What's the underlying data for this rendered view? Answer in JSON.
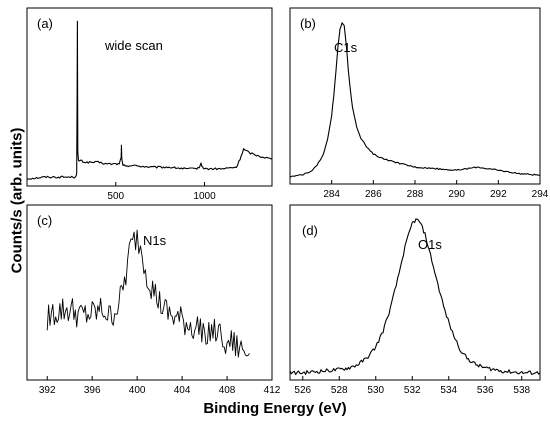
{
  "figure": {
    "ylabel": "Counts/s (arb. units)",
    "xlabel": "Binding Energy (eV)"
  },
  "chart_data": [
    {
      "type": "line",
      "panel": "(a)",
      "annotation": "wide scan",
      "xticks": [
        "500",
        "1000"
      ],
      "xlim": [
        0,
        1380
      ],
      "ylim": [
        0,
        100
      ],
      "series": [
        {
          "x": [
            0,
            100,
            200,
            260,
            275,
            280,
            284,
            286,
            290,
            300,
            330,
            400,
            450,
            500,
            520,
            530,
            532,
            534,
            540,
            600,
            700,
            800,
            900,
            950,
            970,
            980,
            990,
            1000,
            1100,
            1180,
            1200,
            1220,
            1250,
            1300,
            1380
          ],
          "y": [
            2,
            3,
            3,
            3,
            3,
            6,
            98,
            18,
            13,
            13,
            12,
            12,
            11,
            11,
            11,
            15,
            22,
            14,
            10,
            10,
            9,
            9,
            8,
            8,
            9,
            11,
            9,
            8,
            8,
            9,
            14,
            20,
            18,
            16,
            14
          ]
        }
      ]
    },
    {
      "type": "line",
      "panel": "(b)",
      "annotation": "C1s",
      "xticks": [
        "284",
        "286",
        "288",
        "290",
        "292",
        "294"
      ],
      "xlim": [
        282,
        294
      ],
      "ylim": [
        0,
        100
      ],
      "series": [
        {
          "x": [
            282.0,
            282.5,
            283.0,
            283.3,
            283.6,
            283.8,
            284.0,
            284.1,
            284.2,
            284.3,
            284.4,
            284.5,
            284.6,
            284.7,
            284.8,
            284.9,
            285.0,
            285.2,
            285.4,
            285.7,
            286.0,
            286.5,
            287.0,
            288.0,
            289.0,
            290.0,
            290.5,
            291.0,
            291.5,
            292.0,
            293.0,
            294.0
          ],
          "y": [
            2,
            3,
            5,
            9,
            16,
            25,
            40,
            52,
            66,
            82,
            93,
            97,
            95,
            84,
            68,
            55,
            45,
            33,
            26,
            20,
            16,
            13,
            11,
            8,
            7,
            6,
            7,
            8,
            7,
            6,
            4,
            3
          ]
        }
      ]
    },
    {
      "type": "line",
      "panel": "(c)",
      "annotation": "N1s",
      "xticks": [
        "392",
        "396",
        "400",
        "404",
        "408",
        "412"
      ],
      "xlim": [
        390.2,
        412.0
      ],
      "ylim": [
        0,
        100
      ],
      "series": [
        {
          "x": [
            392.0,
            393.0,
            394.0,
            395.0,
            396.0,
            397.0,
            397.5,
            398.0,
            398.5,
            399.0,
            399.3,
            399.6,
            400.0,
            400.3,
            400.6,
            401.0,
            401.5,
            402.0,
            402.5,
            403.0,
            404.0,
            405.0,
            406.0,
            407.0,
            408.0,
            409.0,
            410.0
          ],
          "y": [
            36,
            40,
            41,
            37,
            38,
            41,
            36,
            40,
            47,
            62,
            76,
            82,
            86,
            80,
            71,
            60,
            52,
            45,
            40,
            37,
            34,
            30,
            29,
            26,
            22,
            17,
            14
          ]
        }
      ]
    },
    {
      "type": "line",
      "panel": "(d)",
      "annotation": "O1s",
      "xticks": [
        "526",
        "528",
        "530",
        "532",
        "534",
        "536",
        "538"
      ],
      "xlim": [
        525.3,
        539.0
      ],
      "ylim": [
        0,
        100
      ],
      "series": [
        {
          "x": [
            525.3,
            526.0,
            527.0,
            528.0,
            528.5,
            529.0,
            529.5,
            530.0,
            530.4,
            530.8,
            531.2,
            531.6,
            532.0,
            532.2,
            532.4,
            532.7,
            533.0,
            533.4,
            533.8,
            534.2,
            534.6,
            535.0,
            535.5,
            536.0,
            537.0,
            538.0,
            539.0
          ],
          "y": [
            2,
            2,
            3,
            4,
            5,
            7,
            11,
            18,
            28,
            42,
            60,
            80,
            95,
            97,
            96,
            88,
            75,
            57,
            40,
            27,
            17,
            11,
            7,
            5,
            3,
            2,
            2
          ]
        }
      ]
    }
  ]
}
